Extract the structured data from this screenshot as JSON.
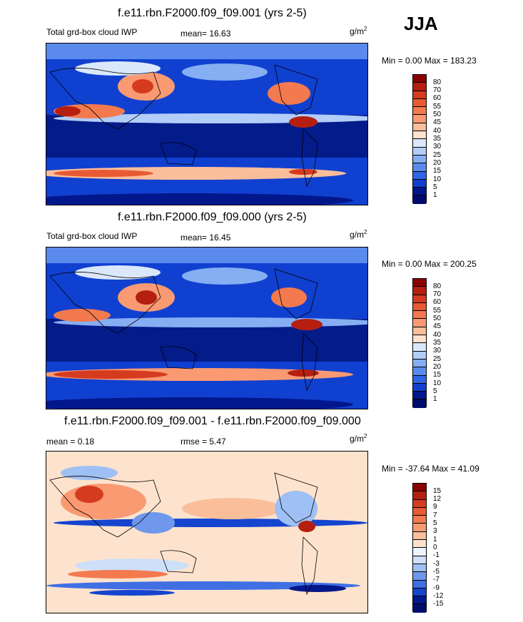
{
  "season": "JJA",
  "units_base": "g/m",
  "units_exp": "2",
  "panels": [
    {
      "title": "f.e11.rbn.F2000.f09_f09.001 (yrs 2-5)",
      "left_label": "Total grd-box cloud IWP",
      "stat_label": "mean=  16.63",
      "minmax": "Min =   0.00 Max = 183.23",
      "colorbar": {
        "labels": [
          "80",
          "70",
          "60",
          "55",
          "50",
          "45",
          "40",
          "35",
          "30",
          "25",
          "20",
          "15",
          "10",
          "5",
          "1"
        ],
        "colors": [
          "#8b0000",
          "#b51f10",
          "#d53b1f",
          "#e85a34",
          "#f37a4f",
          "#f99a72",
          "#fbbe9b",
          "#fde3cd",
          "#dbe8fb",
          "#b2cdf8",
          "#86aef2",
          "#5a8bec",
          "#2f66e6",
          "#1040d0",
          "#02178c",
          "#000c6c"
        ]
      }
    },
    {
      "title": "f.e11.rbn.F2000.f09_f09.000 (yrs 2-5)",
      "left_label": "Total grd-box cloud IWP",
      "stat_label": "mean=  16.45",
      "minmax": "Min =   0.00 Max = 200.25",
      "colorbar": {
        "labels": [
          "80",
          "70",
          "60",
          "55",
          "50",
          "45",
          "40",
          "35",
          "30",
          "25",
          "20",
          "15",
          "10",
          "5",
          "1"
        ],
        "colors": [
          "#8b0000",
          "#b51f10",
          "#d53b1f",
          "#e85a34",
          "#f37a4f",
          "#f99a72",
          "#fbbe9b",
          "#fde3cd",
          "#dbe8fb",
          "#b2cdf8",
          "#86aef2",
          "#5a8bec",
          "#2f66e6",
          "#1040d0",
          "#02178c",
          "#000c6c"
        ]
      }
    },
    {
      "title": "f.e11.rbn.F2000.f09_f09.001 - f.e11.rbn.F2000.f09_f09.000",
      "left_label": "mean =   0.18",
      "stat_label": "rmse =   5.47",
      "minmax": "Min = -37.64 Max =  41.09",
      "colorbar": {
        "labels": [
          "15",
          "12",
          "9",
          "7",
          "5",
          "3",
          "1",
          "0",
          "-1",
          "-3",
          "-5",
          "-7",
          "-9",
          "-12",
          "-15"
        ],
        "colors": [
          "#8b0000",
          "#b51f10",
          "#d53b1f",
          "#e85a34",
          "#f37a4f",
          "#f99a72",
          "#fbbe9b",
          "#fde3cd",
          "#eef4fd",
          "#cddff9",
          "#9fc0f4",
          "#6f98ec",
          "#3f6fe3",
          "#1544cf",
          "#02178c",
          "#000c6c"
        ]
      }
    }
  ],
  "chart_data": [
    {
      "type": "heatmap",
      "title": "f.e11.rbn.F2000.f09_f09.001 (yrs 2-5)",
      "variable": "Total grd-box cloud IWP",
      "units": "g/m^2",
      "season": "JJA",
      "mean": 16.63,
      "min": 0.0,
      "max": 183.23,
      "contour_levels": [
        1,
        5,
        10,
        15,
        20,
        25,
        30,
        35,
        40,
        45,
        50,
        55,
        60,
        70,
        80
      ]
    },
    {
      "type": "heatmap",
      "title": "f.e11.rbn.F2000.f09_f09.000 (yrs 2-5)",
      "variable": "Total grd-box cloud IWP",
      "units": "g/m^2",
      "season": "JJA",
      "mean": 16.45,
      "min": 0.0,
      "max": 200.25,
      "contour_levels": [
        1,
        5,
        10,
        15,
        20,
        25,
        30,
        35,
        40,
        45,
        50,
        55,
        60,
        70,
        80
      ]
    },
    {
      "type": "heatmap",
      "title": "f.e11.rbn.F2000.f09_f09.001 - f.e11.rbn.F2000.f09_f09.000",
      "units": "g/m^2",
      "mean": 0.18,
      "rmse": 5.47,
      "min": -37.64,
      "max": 41.09,
      "contour_levels": [
        -15,
        -12,
        -9,
        -7,
        -5,
        -3,
        -1,
        0,
        1,
        3,
        5,
        7,
        9,
        12,
        15
      ]
    }
  ]
}
